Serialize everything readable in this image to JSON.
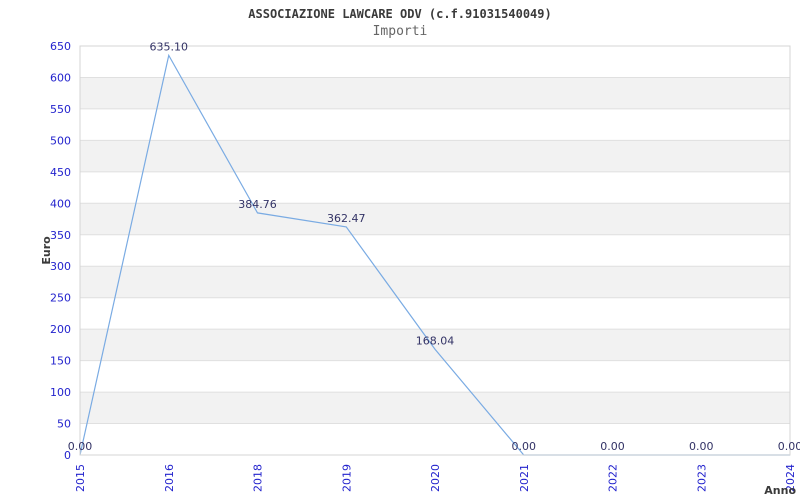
{
  "header": {
    "title": "ASSOCIAZIONE LAWCARE ODV (c.f.91031540049)",
    "subtitle": "Importi"
  },
  "chart_data": {
    "type": "line",
    "title": "ASSOCIAZIONE LAWCARE ODV (c.f.91031540049)",
    "subtitle": "Importi",
    "xlabel": "Anno",
    "ylabel": "Euro",
    "categories": [
      "2015",
      "2016",
      "2018",
      "2019",
      "2020",
      "2021",
      "2022",
      "2023",
      "2024"
    ],
    "values": [
      0,
      635.1,
      384.76,
      362.47,
      168.04,
      0,
      0,
      0,
      0
    ],
    "point_labels": [
      "0.00",
      "635.10",
      "384.76",
      "362.47",
      "168.04",
      "0.00",
      "0.00",
      "0.00",
      "0.00"
    ],
    "ylim": [
      0,
      650
    ],
    "ytick_step": 50,
    "ytick_labels": [
      "0",
      "50",
      "100",
      "150",
      "200",
      "250",
      "300",
      "350",
      "400",
      "450",
      "500",
      "550",
      "600",
      "650"
    ],
    "grid": true,
    "legend_position": "none",
    "banding": "alternating-horizontal",
    "colors": {
      "line": "#7aabe3",
      "tick_label": "#2323cd",
      "point_label": "#333366",
      "band": "#f2f2f2",
      "gridline": "#e0e0e0",
      "plot_border": "#d4d4d4",
      "axis_title": "#3a3a3a",
      "title": "#3a3a3a",
      "subtitle": "#666666",
      "background": "#ffffff"
    }
  }
}
